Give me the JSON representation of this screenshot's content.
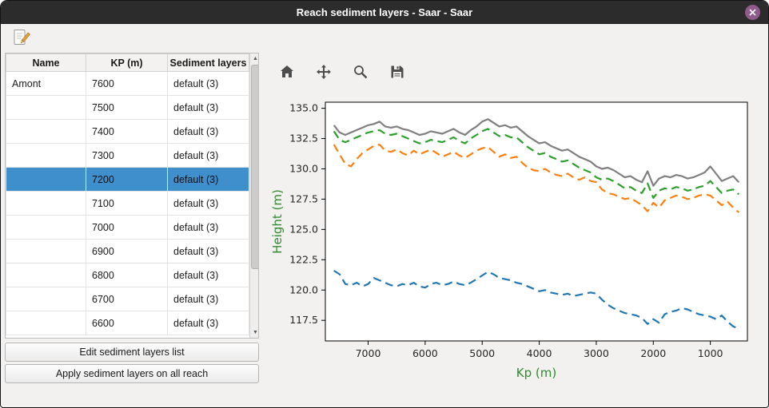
{
  "window": {
    "title": "Reach sediment layers - Saar - Saar",
    "close_icon": "close-icon"
  },
  "colors": {
    "titlebar": "#2c2c2c",
    "selection": "#3f8fcc",
    "close_button": "#905a8c",
    "axis_label_green": "#2e8b2e"
  },
  "menubar": {
    "edit_icon": "edit-note-icon"
  },
  "table": {
    "headers": [
      "Name",
      "KP (m)",
      "Sediment layers"
    ],
    "selected_index": 4,
    "rows": [
      {
        "name": "Amont",
        "kp": "7600",
        "layers": "default (3)"
      },
      {
        "name": "",
        "kp": "7500",
        "layers": "default (3)"
      },
      {
        "name": "",
        "kp": "7400",
        "layers": "default (3)"
      },
      {
        "name": "",
        "kp": "7300",
        "layers": "default (3)"
      },
      {
        "name": "",
        "kp": "7200",
        "layers": "default (3)"
      },
      {
        "name": "",
        "kp": "7100",
        "layers": "default (3)"
      },
      {
        "name": "",
        "kp": "7000",
        "layers": "default (3)"
      },
      {
        "name": "",
        "kp": "6900",
        "layers": "default (3)"
      },
      {
        "name": "",
        "kp": "6800",
        "layers": "default (3)"
      },
      {
        "name": "",
        "kp": "6700",
        "layers": "default (3)"
      },
      {
        "name": "",
        "kp": "6600",
        "layers": "default (3)"
      }
    ]
  },
  "actions": {
    "edit_button": "Edit sediment layers list",
    "apply_button": "Apply sediment layers on all reach"
  },
  "plot_toolbar": {
    "icons": [
      "home-icon",
      "pan-icon",
      "zoom-icon",
      "save-icon"
    ]
  },
  "chart_data": {
    "type": "line",
    "title": "",
    "xlabel": "Kp (m)",
    "ylabel": "Height (m)",
    "axis_label_color": "#2e8b2e",
    "grid": false,
    "legend": "none",
    "x_reversed": true,
    "xlim": [
      7750,
      350
    ],
    "ylim": [
      115.8,
      135.5
    ],
    "x_ticks": [
      7000,
      6000,
      5000,
      4000,
      3000,
      2000,
      1000
    ],
    "y_ticks": [
      117.5,
      120.0,
      122.5,
      125.0,
      127.5,
      130.0,
      132.5,
      135.0
    ],
    "x": [
      7600,
      7500,
      7400,
      7300,
      7200,
      7100,
      7000,
      6900,
      6800,
      6700,
      6600,
      6500,
      6400,
      6300,
      6200,
      6100,
      6000,
      5900,
      5800,
      5700,
      5600,
      5500,
      5400,
      5300,
      5200,
      5100,
      5000,
      4900,
      4800,
      4700,
      4600,
      4500,
      4400,
      4300,
      4200,
      4100,
      4000,
      3900,
      3800,
      3700,
      3600,
      3500,
      3400,
      3300,
      3200,
      3100,
      3000,
      2900,
      2800,
      2700,
      2600,
      2500,
      2400,
      2300,
      2200,
      2100,
      2000,
      1900,
      1800,
      1700,
      1600,
      1500,
      1400,
      1300,
      1200,
      1100,
      1000,
      900,
      800,
      700,
      600,
      500
    ],
    "series": [
      {
        "name": "upper-bank-solid",
        "color": "#7f7f7f",
        "dash": false,
        "values": [
          133.6,
          133.0,
          132.8,
          133.0,
          133.2,
          133.4,
          133.6,
          133.7,
          133.9,
          133.5,
          133.4,
          133.5,
          133.3,
          133.2,
          133.0,
          132.8,
          132.9,
          133.1,
          133.0,
          132.9,
          133.1,
          133.3,
          133.0,
          132.8,
          133.2,
          133.5,
          133.9,
          134.1,
          133.8,
          133.5,
          133.6,
          133.4,
          133.5,
          133.1,
          132.7,
          132.4,
          132.1,
          132.2,
          131.9,
          131.7,
          131.5,
          131.6,
          131.3,
          131.0,
          130.8,
          130.6,
          130.2,
          130.0,
          130.1,
          129.9,
          129.6,
          129.3,
          129.4,
          129.1,
          128.9,
          129.8,
          128.6,
          129.2,
          129.4,
          129.3,
          129.5,
          129.4,
          129.2,
          129.3,
          129.5,
          129.7,
          130.2,
          129.6,
          129.0,
          129.2,
          129.4,
          128.9
        ]
      },
      {
        "name": "sediment-layer-green",
        "color": "#2ca02c",
        "dash": true,
        "values": [
          133.1,
          132.4,
          132.2,
          132.4,
          132.6,
          132.8,
          133.0,
          133.1,
          133.2,
          132.9,
          132.8,
          132.9,
          132.7,
          132.5,
          132.3,
          132.1,
          132.2,
          132.4,
          132.3,
          132.2,
          132.4,
          132.6,
          132.3,
          132.1,
          132.5,
          132.8,
          133.1,
          133.3,
          133.0,
          132.7,
          132.8,
          132.6,
          132.6,
          132.2,
          131.8,
          131.5,
          131.2,
          131.3,
          131.0,
          130.8,
          130.6,
          130.7,
          130.4,
          130.1,
          129.9,
          129.7,
          129.3,
          129.1,
          129.2,
          129.0,
          128.7,
          128.4,
          128.5,
          128.2,
          128.0,
          128.8,
          127.6,
          128.2,
          128.4,
          128.3,
          128.5,
          128.4,
          128.2,
          128.3,
          128.5,
          128.6,
          129.0,
          128.5,
          128.0,
          128.2,
          128.3,
          127.9
        ]
      },
      {
        "name": "sediment-layer-orange",
        "color": "#ff7f0e",
        "dash": true,
        "values": [
          132.0,
          131.2,
          130.4,
          130.2,
          130.8,
          131.3,
          131.6,
          131.9,
          132.0,
          131.5,
          131.4,
          131.6,
          131.3,
          131.1,
          131.5,
          131.2,
          131.4,
          131.6,
          131.3,
          131.0,
          131.2,
          131.4,
          131.1,
          130.9,
          131.2,
          131.5,
          131.7,
          131.8,
          131.4,
          131.0,
          131.2,
          130.9,
          131.0,
          130.5,
          130.1,
          129.9,
          129.8,
          130.0,
          129.7,
          129.5,
          129.4,
          129.6,
          129.3,
          129.1,
          129.3,
          129.0,
          128.9,
          128.3,
          128.0,
          127.9,
          127.7,
          127.5,
          127.6,
          127.3,
          127.0,
          126.5,
          127.2,
          126.8,
          127.4,
          127.6,
          127.8,
          127.7,
          127.5,
          127.6,
          127.8,
          127.9,
          127.8,
          127.4,
          127.0,
          127.3,
          126.8,
          126.4
        ]
      },
      {
        "name": "bed-bottom-blue",
        "color": "#1f77b4",
        "dash": true,
        "values": [
          121.6,
          121.3,
          120.5,
          120.4,
          120.6,
          120.3,
          120.5,
          121.0,
          120.8,
          120.6,
          120.4,
          120.3,
          120.5,
          120.4,
          120.6,
          120.3,
          120.2,
          120.5,
          120.6,
          120.4,
          120.5,
          120.7,
          120.5,
          120.4,
          120.6,
          120.9,
          121.2,
          121.5,
          121.3,
          121.0,
          120.9,
          120.8,
          120.6,
          120.5,
          120.3,
          120.1,
          119.9,
          120.0,
          119.8,
          119.7,
          119.6,
          119.7,
          119.5,
          119.6,
          119.7,
          119.8,
          119.7,
          119.2,
          118.8,
          118.5,
          118.3,
          118.1,
          118.0,
          117.9,
          117.7,
          117.2,
          117.6,
          117.3,
          118.0,
          118.2,
          118.3,
          118.5,
          118.4,
          118.2,
          118.0,
          117.9,
          117.8,
          117.6,
          117.9,
          117.4,
          117.0,
          116.8
        ]
      }
    ]
  }
}
